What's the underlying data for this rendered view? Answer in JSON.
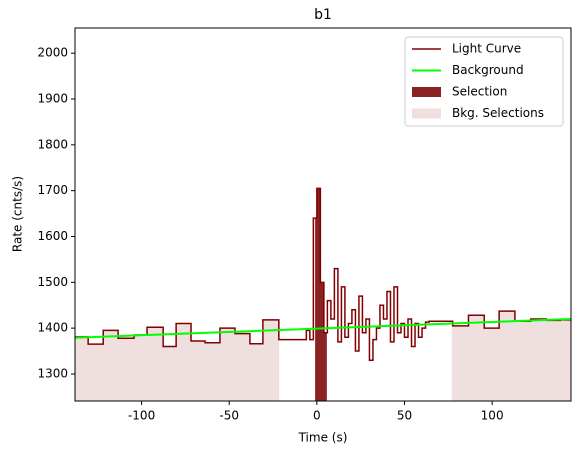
{
  "chart_data": {
    "type": "line",
    "title": "b1",
    "x_label": "Time (s)",
    "y_label": "Rate (cnts/s)",
    "xlim": [
      -138,
      145
    ],
    "ylim": [
      1241,
      2055
    ],
    "xticks": [
      -100,
      -50,
      0,
      50,
      100
    ],
    "yticks": [
      1300,
      1400,
      1500,
      1600,
      1700,
      1800,
      1900,
      2000
    ],
    "legend": "upper right",
    "series": [
      {
        "name": "Light Curve",
        "color": "#800000",
        "drawstyle": "steps-post",
        "x": [
          -138,
          -130.5,
          -121.9,
          -113.4,
          -104.3,
          -96.9,
          -87.7,
          -80.3,
          -71.8,
          -63.8,
          -55.3,
          -46.7,
          -38.2,
          -30.8,
          -21.7,
          -6,
          -4,
          -2,
          0,
          2,
          4,
          6,
          8,
          10,
          12,
          14,
          16,
          18,
          20,
          22,
          24,
          26,
          28,
          30,
          32,
          34,
          36,
          38,
          40,
          42,
          44,
          46,
          48,
          50,
          52,
          54,
          56,
          58,
          60,
          62,
          64,
          77.5,
          86.5,
          95.5,
          104,
          113,
          122,
          131,
          139
        ],
        "values": [
          1381,
          1365,
          1395,
          1378,
          1385,
          1402,
          1360,
          1410,
          1372,
          1368,
          1400,
          1388,
          1366,
          1418,
          1375,
          1395,
          1375,
          1640,
          1705,
          1500,
          1390,
          1460,
          1420,
          1530,
          1370,
          1490,
          1380,
          1410,
          1440,
          1350,
          1470,
          1390,
          1420,
          1330,
          1375,
          1400,
          1450,
          1420,
          1480,
          1370,
          1490,
          1390,
          1410,
          1380,
          1420,
          1360,
          1410,
          1380,
          1400,
          1413,
          1415,
          1405,
          1428,
          1400,
          1437,
          1415,
          1420,
          1417,
          1418
        ]
      },
      {
        "name": "Background",
        "color": "#00ff00",
        "x": [
          -138,
          145
        ],
        "values": [
          1379,
          1420
        ]
      }
    ],
    "selections": [
      {
        "name": "Selection",
        "color": "#8b2222",
        "ranges": [
          [
            -1,
            5.7
          ]
        ]
      },
      {
        "name": "Bkg. Selections",
        "color": "#efdfdf",
        "ranges": [
          [
            -138,
            -21.5
          ],
          [
            77,
            145
          ]
        ]
      }
    ]
  }
}
